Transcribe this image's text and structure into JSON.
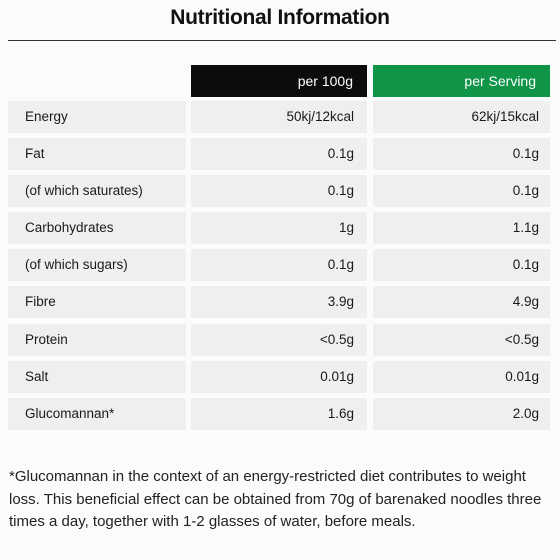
{
  "title": "Nutritional Information",
  "headers": {
    "per_100g": "per 100g",
    "per_serving": "per Serving"
  },
  "colors": {
    "header_dark": "#0c0c0c",
    "header_green": "#109548",
    "cell_bg": "#efefef"
  },
  "rows": [
    {
      "label": "Energy",
      "per_100g": "50kj/12kcal",
      "per_serving": "62kj/15kcal"
    },
    {
      "label": "Fat",
      "per_100g": "0.1g",
      "per_serving": "0.1g"
    },
    {
      "label": "(of which saturates)",
      "per_100g": "0.1g",
      "per_serving": "0.1g"
    },
    {
      "label": "Carbohydrates",
      "per_100g": "1g",
      "per_serving": "1.1g"
    },
    {
      "label": "(of which sugars)",
      "per_100g": "0.1g",
      "per_serving": "0.1g"
    },
    {
      "label": "Fibre",
      "per_100g": "3.9g",
      "per_serving": "4.9g"
    },
    {
      "label": "Protein",
      "per_100g": "<0.5g",
      "per_serving": "<0.5g"
    },
    {
      "label": "Salt",
      "per_100g": "0.01g",
      "per_serving": "0.01g"
    },
    {
      "label": "Glucomannan*",
      "per_100g": "1.6g",
      "per_serving": "2.0g"
    }
  ],
  "footnote": "*Glucomannan in the context of an energy-restricted diet contributes to weight loss. This beneficial effect can be obtained from 70g of barenaked noodles three times a day, together with 1-2 glasses of water, before meals."
}
